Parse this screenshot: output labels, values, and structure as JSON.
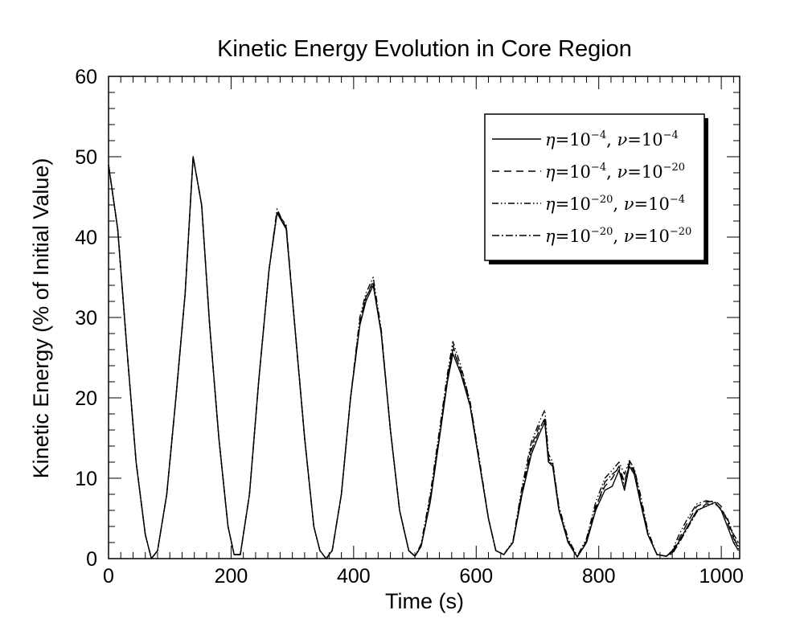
{
  "chart_data": {
    "type": "line",
    "title": "Kinetic Energy Evolution in Core Region",
    "xlabel": "Time (s)",
    "ylabel": "Kinetic Energy (% of Initial Value)",
    "xlim": [
      0,
      1030
    ],
    "ylim": [
      0,
      60
    ],
    "x_ticks": [
      0,
      200,
      400,
      600,
      800,
      1000
    ],
    "y_ticks": [
      0,
      10,
      20,
      30,
      40,
      50,
      60
    ],
    "x_tick_labels": [
      "0",
      "200",
      "400",
      "600",
      "800",
      "1000"
    ],
    "y_tick_labels": [
      "0",
      "10",
      "20",
      "30",
      "40",
      "50",
      "60"
    ],
    "grid": false,
    "legend_position": "top-right",
    "series": [
      {
        "name": "η=10^-4, ν=10^-4",
        "legend": {
          "eta_base": "10",
          "eta_exp": "−4",
          "nu_base": "10",
          "nu_exp": "−4"
        },
        "dash": "solid",
        "x": [
          0,
          15,
          30,
          45,
          60,
          70,
          80,
          95,
          110,
          125,
          138,
          152,
          165,
          180,
          195,
          205,
          215,
          230,
          245,
          262,
          275,
          290,
          305,
          320,
          335,
          345,
          355,
          365,
          380,
          395,
          410,
          420,
          432,
          445,
          460,
          475,
          490,
          500,
          510,
          525,
          540,
          553,
          562,
          575,
          590,
          605,
          620,
          632,
          645,
          660,
          675,
          690,
          703,
          712,
          718,
          725,
          735,
          750,
          765,
          780,
          795,
          810,
          822,
          833,
          842,
          850,
          858,
          868,
          880,
          895,
          910,
          920,
          930,
          945,
          960,
          975,
          990,
          1000,
          1010,
          1020,
          1028
        ],
        "y": [
          49,
          41,
          26,
          12,
          3,
          0,
          1,
          8,
          20,
          33,
          50,
          44,
          29,
          15,
          4,
          0.5,
          0.5,
          8,
          22,
          36,
          43,
          41,
          28,
          15,
          4,
          1,
          0,
          1,
          8,
          20,
          29,
          32,
          34,
          28,
          16,
          6,
          1,
          0.3,
          1.5,
          7,
          15,
          22,
          25.5,
          23,
          19,
          12,
          5,
          1,
          0.5,
          2,
          8,
          13,
          15.5,
          17,
          12,
          11.5,
          6,
          2,
          0.2,
          2,
          6,
          8.5,
          9,
          11,
          8.5,
          11.5,
          10.5,
          7,
          3,
          0.5,
          0.3,
          0.8,
          2,
          4,
          6,
          6.5,
          7,
          6,
          4,
          2,
          1
        ]
      },
      {
        "name": "η=10^-4, ν=10^-20",
        "legend": {
          "eta_base": "10",
          "eta_exp": "−4",
          "nu_base": "10",
          "nu_exp": "−20"
        },
        "dash": "dashed",
        "x": [
          0,
          15,
          30,
          45,
          60,
          70,
          80,
          95,
          110,
          125,
          138,
          152,
          165,
          180,
          195,
          205,
          215,
          230,
          245,
          262,
          275,
          290,
          305,
          320,
          335,
          345,
          355,
          365,
          380,
          395,
          410,
          420,
          432,
          445,
          460,
          475,
          490,
          500,
          510,
          525,
          540,
          553,
          562,
          575,
          590,
          605,
          620,
          632,
          645,
          660,
          675,
          690,
          703,
          712,
          718,
          725,
          735,
          750,
          765,
          780,
          795,
          810,
          822,
          833,
          842,
          850,
          858,
          868,
          880,
          895,
          910,
          920,
          930,
          945,
          960,
          975,
          990,
          1000,
          1010,
          1020,
          1028
        ],
        "y": [
          49,
          41,
          26,
          12,
          3,
          0,
          1,
          8,
          20,
          33,
          50,
          44,
          29,
          15,
          4,
          0.5,
          0.5,
          8,
          22,
          36,
          43.2,
          41.2,
          28,
          15,
          4,
          1,
          0,
          1,
          8,
          20,
          29.5,
          32.5,
          34.5,
          28,
          16,
          6,
          1,
          0.3,
          1.5,
          7.5,
          15.5,
          22.5,
          26,
          23.5,
          19.5,
          12,
          5,
          1,
          0.5,
          2,
          8.5,
          14,
          16.5,
          17.2,
          12.5,
          11.5,
          6,
          2,
          0.2,
          2.2,
          6.5,
          9,
          10,
          11.5,
          9.5,
          12,
          11,
          7.5,
          3.2,
          0.5,
          0.3,
          0.9,
          2.3,
          4.5,
          6.5,
          7,
          7.2,
          6.5,
          4.5,
          2.5,
          1.5
        ]
      },
      {
        "name": "η=10^-20, ν=10^-4",
        "legend": {
          "eta_base": "10",
          "eta_exp": "−20",
          "nu_base": "10",
          "nu_exp": "−4"
        },
        "dash": "dashdotdot",
        "x": [
          0,
          15,
          30,
          45,
          60,
          70,
          80,
          95,
          110,
          125,
          138,
          152,
          165,
          180,
          195,
          205,
          215,
          230,
          245,
          262,
          275,
          290,
          305,
          320,
          335,
          345,
          355,
          365,
          380,
          395,
          410,
          420,
          432,
          445,
          460,
          475,
          490,
          500,
          510,
          525,
          540,
          553,
          562,
          575,
          590,
          605,
          620,
          632,
          645,
          660,
          675,
          690,
          703,
          712,
          718,
          725,
          735,
          750,
          765,
          780,
          795,
          810,
          822,
          833,
          842,
          850,
          858,
          868,
          880,
          895,
          910,
          920,
          930,
          945,
          960,
          975,
          990,
          1000,
          1010,
          1020,
          1028
        ],
        "y": [
          49,
          41,
          26,
          12,
          3,
          0,
          1,
          8,
          20,
          33,
          50,
          44,
          29,
          15,
          4,
          0.5,
          0.5,
          8,
          22,
          36,
          43.5,
          41,
          28,
          15,
          4,
          1,
          0,
          1,
          8,
          20,
          30,
          33,
          35,
          28.5,
          16,
          6,
          1,
          0.3,
          1.8,
          8,
          16,
          23,
          27,
          24,
          19.5,
          12.5,
          5,
          1,
          0.5,
          2.2,
          9,
          14.5,
          17,
          18.5,
          13,
          12,
          6.5,
          2.5,
          0.3,
          2.5,
          7,
          10,
          11,
          12,
          10.5,
          12.2,
          11.2,
          8,
          3.5,
          0.5,
          0.3,
          1,
          2.8,
          5,
          6.8,
          7.2,
          7,
          6,
          5,
          3,
          2
        ]
      },
      {
        "name": "η=10^-20, ν=10^-20",
        "legend": {
          "eta_base": "10",
          "eta_exp": "−20",
          "nu_base": "10",
          "nu_exp": "−20"
        },
        "dash": "dashdot",
        "x": [
          0,
          15,
          30,
          45,
          60,
          70,
          80,
          95,
          110,
          125,
          138,
          152,
          165,
          180,
          195,
          205,
          215,
          230,
          245,
          262,
          275,
          290,
          305,
          320,
          335,
          345,
          355,
          365,
          380,
          395,
          410,
          420,
          432,
          445,
          460,
          475,
          490,
          500,
          510,
          525,
          540,
          553,
          562,
          575,
          590,
          605,
          620,
          632,
          645,
          660,
          675,
          690,
          703,
          712,
          718,
          725,
          735,
          750,
          765,
          780,
          795,
          810,
          822,
          833,
          842,
          850,
          858,
          868,
          880,
          895,
          910,
          920,
          930,
          945,
          960,
          975,
          990,
          1000,
          1010,
          1020,
          1028
        ],
        "y": [
          49,
          41,
          26,
          12,
          3,
          0,
          1,
          8,
          20,
          33,
          50,
          44,
          29,
          15,
          4,
          0.5,
          0.5,
          8,
          22,
          36,
          43,
          41.5,
          28,
          15,
          4,
          1,
          0,
          1,
          8,
          20,
          29,
          32.5,
          34.2,
          28.2,
          16,
          6,
          1,
          0.3,
          1.5,
          7.2,
          15.2,
          22.2,
          26.5,
          23.2,
          19,
          12,
          5,
          1,
          0.5,
          2,
          8.2,
          13.5,
          16,
          17.5,
          12,
          11.8,
          6.2,
          2.2,
          0.2,
          2,
          6.2,
          9.5,
          10.5,
          11.2,
          9,
          11.8,
          10.8,
          7.2,
          3,
          0.5,
          0.3,
          0.6,
          1.8,
          3.8,
          5.8,
          6.8,
          6.8,
          6.2,
          4.8,
          2.8,
          1.2
        ]
      }
    ]
  }
}
